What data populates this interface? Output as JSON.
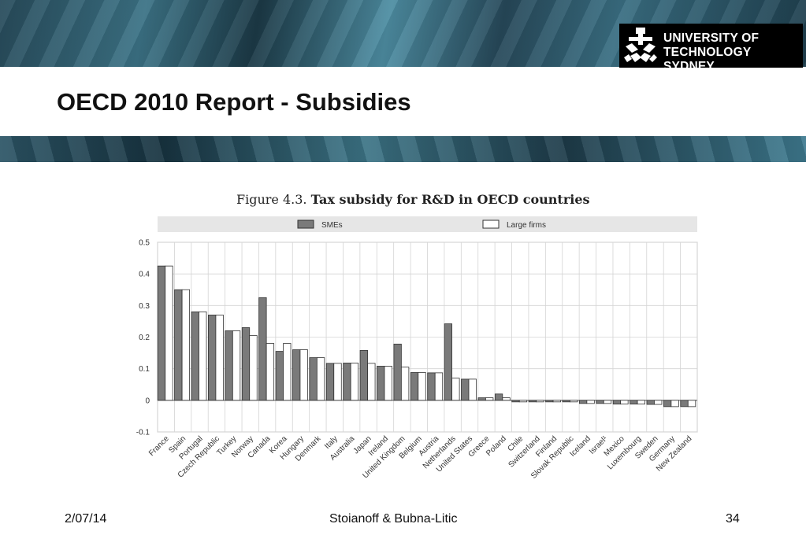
{
  "slide": {
    "title": "OECD 2010 Report - Subsidies",
    "logo_line1": "UNIVERSITY OF",
    "logo_line2": "TECHNOLOGY SYDNEY"
  },
  "figure": {
    "number": "Figure 4.3.",
    "caption": "Tax subsidy for R&D in OECD countries"
  },
  "footer": {
    "date": "2/07/14",
    "authors": "Stoianoff & Bubna-Litic",
    "page": "34"
  },
  "colors": {
    "sme_bar": "#7a7a7a",
    "large_bar": "#ffffff",
    "legend_bg": "#e6e6e6",
    "grid": "#d4d4d4"
  },
  "chart_data": {
    "type": "bar",
    "title": "",
    "xlabel": "",
    "ylabel": "",
    "ylim": [
      -0.1,
      0.5
    ],
    "yticks": [
      "0.5",
      "0.4",
      "0.3",
      "0.2",
      "0.1",
      "0",
      "-0.1"
    ],
    "ytick_values": [
      0.5,
      0.4,
      0.3,
      0.2,
      0.1,
      0,
      -0.1
    ],
    "grid": true,
    "legend_position": "top",
    "categories": [
      "France",
      "Spain",
      "Portugal",
      "Czech Republic",
      "Turkey",
      "Norway",
      "Canada",
      "Korea",
      "Hungary",
      "Denmark",
      "Italy",
      "Australia",
      "Japan",
      "Ireland",
      "United Kingdom",
      "Belgium",
      "Austria",
      "Netherlands",
      "United States",
      "Greece",
      "Poland",
      "Chile",
      "Switzerland",
      "Finland",
      "Slovak Republic",
      "Iceland",
      "Israel¹",
      "Mexico",
      "Luxembourg",
      "Sweden",
      "Germany",
      "New Zealand"
    ],
    "series": [
      {
        "name": "SMEs",
        "values": [
          0.425,
          0.35,
          0.28,
          0.27,
          0.22,
          0.23,
          0.325,
          0.155,
          0.16,
          0.135,
          0.117,
          0.118,
          0.158,
          0.108,
          0.178,
          0.088,
          0.087,
          0.242,
          0.067,
          0.008,
          0.02,
          -0.005,
          -0.005,
          -0.005,
          -0.005,
          -0.01,
          -0.01,
          -0.012,
          -0.012,
          -0.013,
          -0.02,
          -0.02
        ]
      },
      {
        "name": "Large firms",
        "values": [
          0.425,
          0.35,
          0.28,
          0.27,
          0.22,
          0.205,
          0.18,
          0.18,
          0.16,
          0.135,
          0.117,
          0.118,
          0.117,
          0.108,
          0.105,
          0.088,
          0.087,
          0.07,
          0.067,
          0.008,
          0.008,
          -0.005,
          -0.005,
          -0.005,
          -0.005,
          -0.01,
          -0.01,
          -0.012,
          -0.012,
          -0.013,
          -0.02,
          -0.02
        ]
      }
    ]
  }
}
